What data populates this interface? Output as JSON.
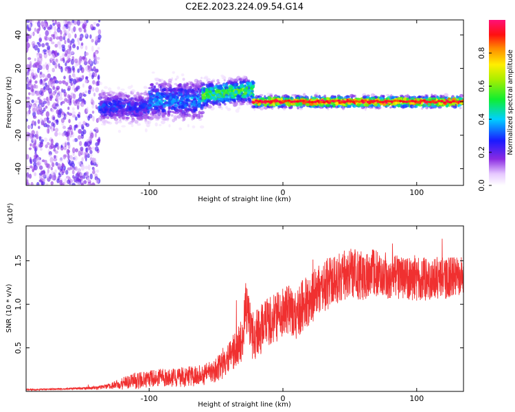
{
  "figure": {
    "title": "C2E2.2023.224.09.54.G14"
  },
  "chart_data": [
    {
      "type": "heatmap",
      "name": "spectrogram",
      "xlabel": "Height of straight line (km)",
      "ylabel": "Frequency (Hz)",
      "xlim": [
        -192,
        135
      ],
      "ylim": [
        -50,
        49
      ],
      "xticks": [
        -100,
        0,
        100
      ],
      "xtick_labels": [
        "-100",
        "0",
        "100"
      ],
      "yticks": [
        -40,
        -20,
        0,
        20,
        40
      ],
      "ytick_labels": [
        "-40",
        "-20",
        "0",
        "20",
        "40"
      ],
      "grid": false,
      "colorbar": {
        "label": "Normalized spectral amplitude",
        "range": [
          0,
          1
        ],
        "ticks": [
          0,
          0.2,
          0.4,
          0.6,
          0.8
        ],
        "tick_labels": [
          "0.0",
          "0.2",
          "0.4",
          "0.6",
          "0.8"
        ],
        "colormap": "rainbow (white-violet-blue-cyan-green-yellow-orange-red-magenta)"
      },
      "regions": [
        {
          "x_range": [
            -192,
            -137
          ],
          "description": "broadband noise",
          "freq_center": 0,
          "freq_spread": 50,
          "amplitude": 0.12
        },
        {
          "x_range": [
            -137,
            -100
          ],
          "freq_center": -3,
          "freq_spread": 9,
          "amplitude": 0.28
        },
        {
          "x_range": [
            -100,
            -60
          ],
          "freq_center": 1,
          "freq_spread": 11,
          "amplitude": 0.35
        },
        {
          "x_range": [
            -60,
            -22
          ],
          "freq_center": 4,
          "freq_spread": 7,
          "amplitude": 0.55
        },
        {
          "x_range": [
            -22,
            135
          ],
          "freq_center": 0,
          "freq_spread": 3,
          "amplitude": 0.9
        }
      ]
    },
    {
      "type": "line",
      "name": "snr",
      "xlabel": "Height of straight line (km)",
      "ylabel": "SNR (10 * v/v)",
      "y_scale_label": "(x10⁴)",
      "xlim": [
        -192,
        135
      ],
      "ylim": [
        0,
        1.9
      ],
      "xticks": [
        -100,
        0,
        100
      ],
      "xtick_labels": [
        "-100",
        "0",
        "100"
      ],
      "yticks": [
        0.5,
        1.0,
        1.5
      ],
      "ytick_labels": [
        "0.5",
        "1.0",
        "1.5"
      ],
      "grid": false,
      "color": "#f03030",
      "series": [
        {
          "x": [
            -192,
            -160,
            -140,
            -130,
            -120,
            -110,
            -100,
            -90,
            -80,
            -70,
            -60,
            -55,
            -50,
            -45,
            -40,
            -35,
            -30,
            -28,
            -25,
            -22,
            -20,
            -15,
            -10,
            -5,
            0,
            5,
            10,
            15,
            20,
            25,
            30,
            40,
            50,
            60,
            70,
            80,
            90,
            100,
            110,
            120,
            135
          ],
          "y": [
            0.02,
            0.03,
            0.04,
            0.06,
            0.09,
            0.12,
            0.15,
            0.16,
            0.16,
            0.17,
            0.19,
            0.21,
            0.25,
            0.3,
            0.38,
            0.5,
            0.62,
            1.0,
            0.75,
            0.6,
            0.65,
            0.75,
            0.8,
            0.85,
            0.9,
            0.95,
            0.85,
            1.0,
            1.05,
            1.15,
            1.2,
            1.3,
            1.35,
            1.35,
            1.35,
            1.32,
            1.3,
            1.28,
            1.3,
            1.3,
            1.32
          ],
          "spread": [
            0.01,
            0.01,
            0.02,
            0.03,
            0.07,
            0.1,
            0.1,
            0.1,
            0.11,
            0.12,
            0.12,
            0.13,
            0.14,
            0.16,
            0.18,
            0.22,
            0.28,
            0.35,
            0.3,
            0.3,
            0.28,
            0.3,
            0.3,
            0.3,
            0.28,
            0.28,
            0.28,
            0.3,
            0.3,
            0.3,
            0.3,
            0.3,
            0.3,
            0.3,
            0.28,
            0.26,
            0.25,
            0.25,
            0.25,
            0.24,
            0.22
          ]
        }
      ]
    }
  ]
}
